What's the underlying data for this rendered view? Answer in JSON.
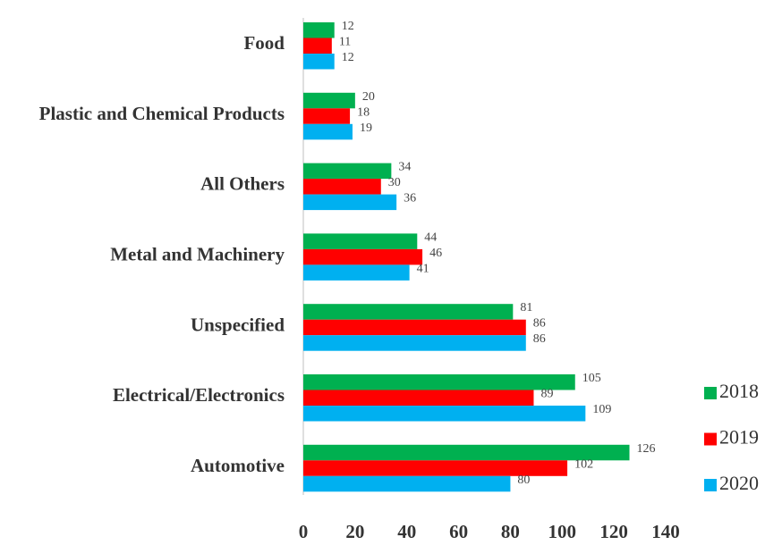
{
  "chart_data": {
    "type": "bar",
    "orientation": "horizontal",
    "categories": [
      "Food",
      "Plastic and Chemical Products",
      "All Others",
      "Metal and Machinery",
      "Unspecified",
      "Electrical/Electronics",
      "Automotive"
    ],
    "series": [
      {
        "name": "2018",
        "color": "#00b050",
        "values": [
          12,
          20,
          34,
          44,
          81,
          105,
          126
        ]
      },
      {
        "name": "2019",
        "color": "#ff0000",
        "values": [
          11,
          18,
          30,
          46,
          86,
          89,
          102
        ]
      },
      {
        "name": "2020",
        "color": "#00b0f0",
        "values": [
          12,
          19,
          36,
          41,
          86,
          109,
          80
        ]
      }
    ],
    "xlim": [
      0,
      140
    ],
    "xticks": [
      0,
      20,
      40,
      60,
      80,
      100,
      120,
      140
    ],
    "grid": false,
    "legend": "right",
    "data_labels": true
  }
}
